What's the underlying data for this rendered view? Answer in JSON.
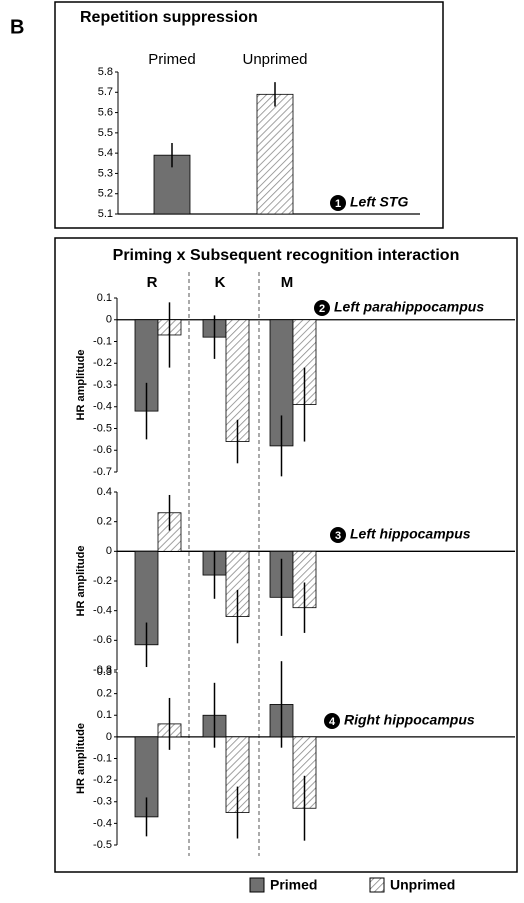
{
  "panel_label": "B",
  "group_title": "Priming x Subsequent recognition interaction",
  "chart_data": [
    {
      "type": "bar",
      "title": "Repetition suppression",
      "categories": [
        "Primed",
        "Unprimed"
      ],
      "values": [
        5.39,
        5.69
      ],
      "errors": [
        0.06,
        0.06
      ],
      "bar_styles": [
        {
          "color": "#707070",
          "hatch": false
        },
        {
          "color": "#8a8a8a",
          "hatch": true
        }
      ],
      "ylim": [
        5.1,
        5.8
      ],
      "yticks": [
        5.1,
        5.2,
        5.3,
        5.4,
        5.5,
        5.6,
        5.7,
        5.8
      ],
      "marker": "1",
      "annotation": "Left STG"
    },
    {
      "type": "grouped-bar",
      "ylabel": "HR amplitude",
      "categories": [
        "R",
        "K",
        "M"
      ],
      "series": [
        {
          "name": "Primed",
          "color": "#707070",
          "hatch": false,
          "values": [
            -0.42,
            -0.08,
            -0.58
          ],
          "errors": [
            0.13,
            0.1,
            0.14
          ]
        },
        {
          "name": "Unprimed",
          "color": "#8a8a8a",
          "hatch": true,
          "values": [
            -0.07,
            -0.56,
            -0.39
          ],
          "errors": [
            0.15,
            0.1,
            0.17
          ]
        }
      ],
      "ylim": [
        -0.7,
        0.1
      ],
      "yticks": [
        0.1,
        0,
        -0.1,
        -0.2,
        -0.3,
        -0.4,
        -0.5,
        -0.6,
        -0.7
      ],
      "marker": "2",
      "annotation": "Left parahippocampus"
    },
    {
      "type": "grouped-bar",
      "ylabel": "HR amplitude",
      "categories": [
        "R",
        "K",
        "M"
      ],
      "series": [
        {
          "name": "Primed",
          "color": "#707070",
          "hatch": false,
          "values": [
            -0.63,
            -0.16,
            -0.31
          ],
          "errors": [
            0.15,
            0.16,
            0.26
          ]
        },
        {
          "name": "Unprimed",
          "color": "#8a8a8a",
          "hatch": true,
          "values": [
            0.26,
            -0.44,
            -0.38
          ],
          "errors": [
            0.12,
            0.18,
            0.17
          ]
        }
      ],
      "ylim": [
        -0.8,
        0.4
      ],
      "yticks": [
        0.4,
        0.2,
        0,
        -0.2,
        -0.4,
        -0.6,
        -0.8
      ],
      "marker": "3",
      "annotation": "Left hippocampus"
    },
    {
      "type": "grouped-bar",
      "ylabel": "HR amplitude",
      "categories": [
        "R",
        "K",
        "M"
      ],
      "series": [
        {
          "name": "Primed",
          "color": "#707070",
          "hatch": false,
          "values": [
            -0.37,
            0.1,
            0.15
          ],
          "errors": [
            0.09,
            0.15,
            0.2
          ]
        },
        {
          "name": "Unprimed",
          "color": "#8a8a8a",
          "hatch": true,
          "values": [
            0.06,
            -0.35,
            -0.33
          ],
          "errors": [
            0.12,
            0.12,
            0.15
          ]
        }
      ],
      "ylim": [
        -0.5,
        0.3
      ],
      "yticks": [
        0.3,
        0.2,
        0.1,
        0,
        -0.1,
        -0.2,
        -0.3,
        -0.4,
        -0.5
      ],
      "marker": "4",
      "annotation": "Right hippocampus"
    }
  ]
}
